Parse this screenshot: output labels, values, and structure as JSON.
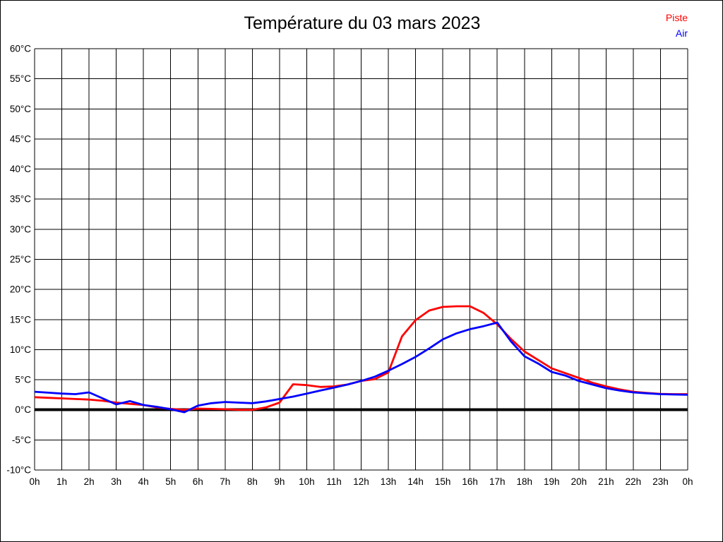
{
  "chart_data": {
    "type": "line",
    "title": "Température du 03 mars 2023",
    "xlabel": "",
    "ylabel": "",
    "ylim": [
      -10,
      60
    ],
    "y_tick_step": 5,
    "y_tick_labels": [
      "60°C",
      "55°C",
      "50°C",
      "45°C",
      "40°C",
      "35°C",
      "30°C",
      "25°C",
      "20°C",
      "15°C",
      "10°C",
      "5°C",
      "0°C",
      "-5°C",
      "-10°C"
    ],
    "x_start_hours": 0,
    "x_end_hours": 24,
    "x_step_hours": 0.5,
    "x_tick_labels": [
      "0h",
      "1h",
      "2h",
      "3h",
      "4h",
      "5h",
      "6h",
      "7h",
      "8h",
      "9h",
      "10h",
      "11h",
      "12h",
      "13h",
      "14h",
      "15h",
      "16h",
      "17h",
      "18h",
      "19h",
      "20h",
      "21h",
      "22h",
      "23h",
      "0h"
    ],
    "grid": true,
    "zero_line_bold": true,
    "legend_position": "top-right",
    "series": [
      {
        "name": "Piste",
        "color": "#ff0000",
        "values": [
          2.1,
          2.0,
          1.9,
          1.8,
          1.7,
          1.5,
          1.2,
          1.0,
          0.8,
          0.4,
          0.15,
          0.0,
          0.2,
          0.15,
          0.1,
          0.0,
          0.0,
          0.4,
          1.2,
          4.25,
          4.1,
          3.8,
          3.9,
          4.2,
          4.8,
          5.1,
          6.2,
          12.2,
          14.9,
          16.5,
          17.1,
          17.2,
          17.2,
          16.1,
          14.2,
          11.8,
          9.7,
          8.3,
          6.9,
          6.1,
          5.3,
          4.5,
          3.9,
          3.4,
          3.0,
          2.8,
          2.65,
          2.6,
          2.6
        ]
      },
      {
        "name": "Air",
        "color": "#0000ff",
        "values": [
          3.0,
          2.85,
          2.7,
          2.6,
          2.9,
          1.9,
          0.9,
          1.45,
          0.8,
          0.5,
          0.1,
          -0.4,
          0.7,
          1.1,
          1.3,
          1.2,
          1.1,
          1.4,
          1.8,
          2.2,
          2.7,
          3.2,
          3.7,
          4.2,
          4.8,
          5.5,
          6.5,
          7.6,
          8.8,
          10.2,
          11.7,
          12.7,
          13.4,
          13.9,
          14.5,
          11.4,
          8.9,
          7.7,
          6.3,
          5.7,
          4.8,
          4.2,
          3.6,
          3.2,
          2.9,
          2.75,
          2.6,
          2.55,
          2.5
        ]
      }
    ]
  }
}
